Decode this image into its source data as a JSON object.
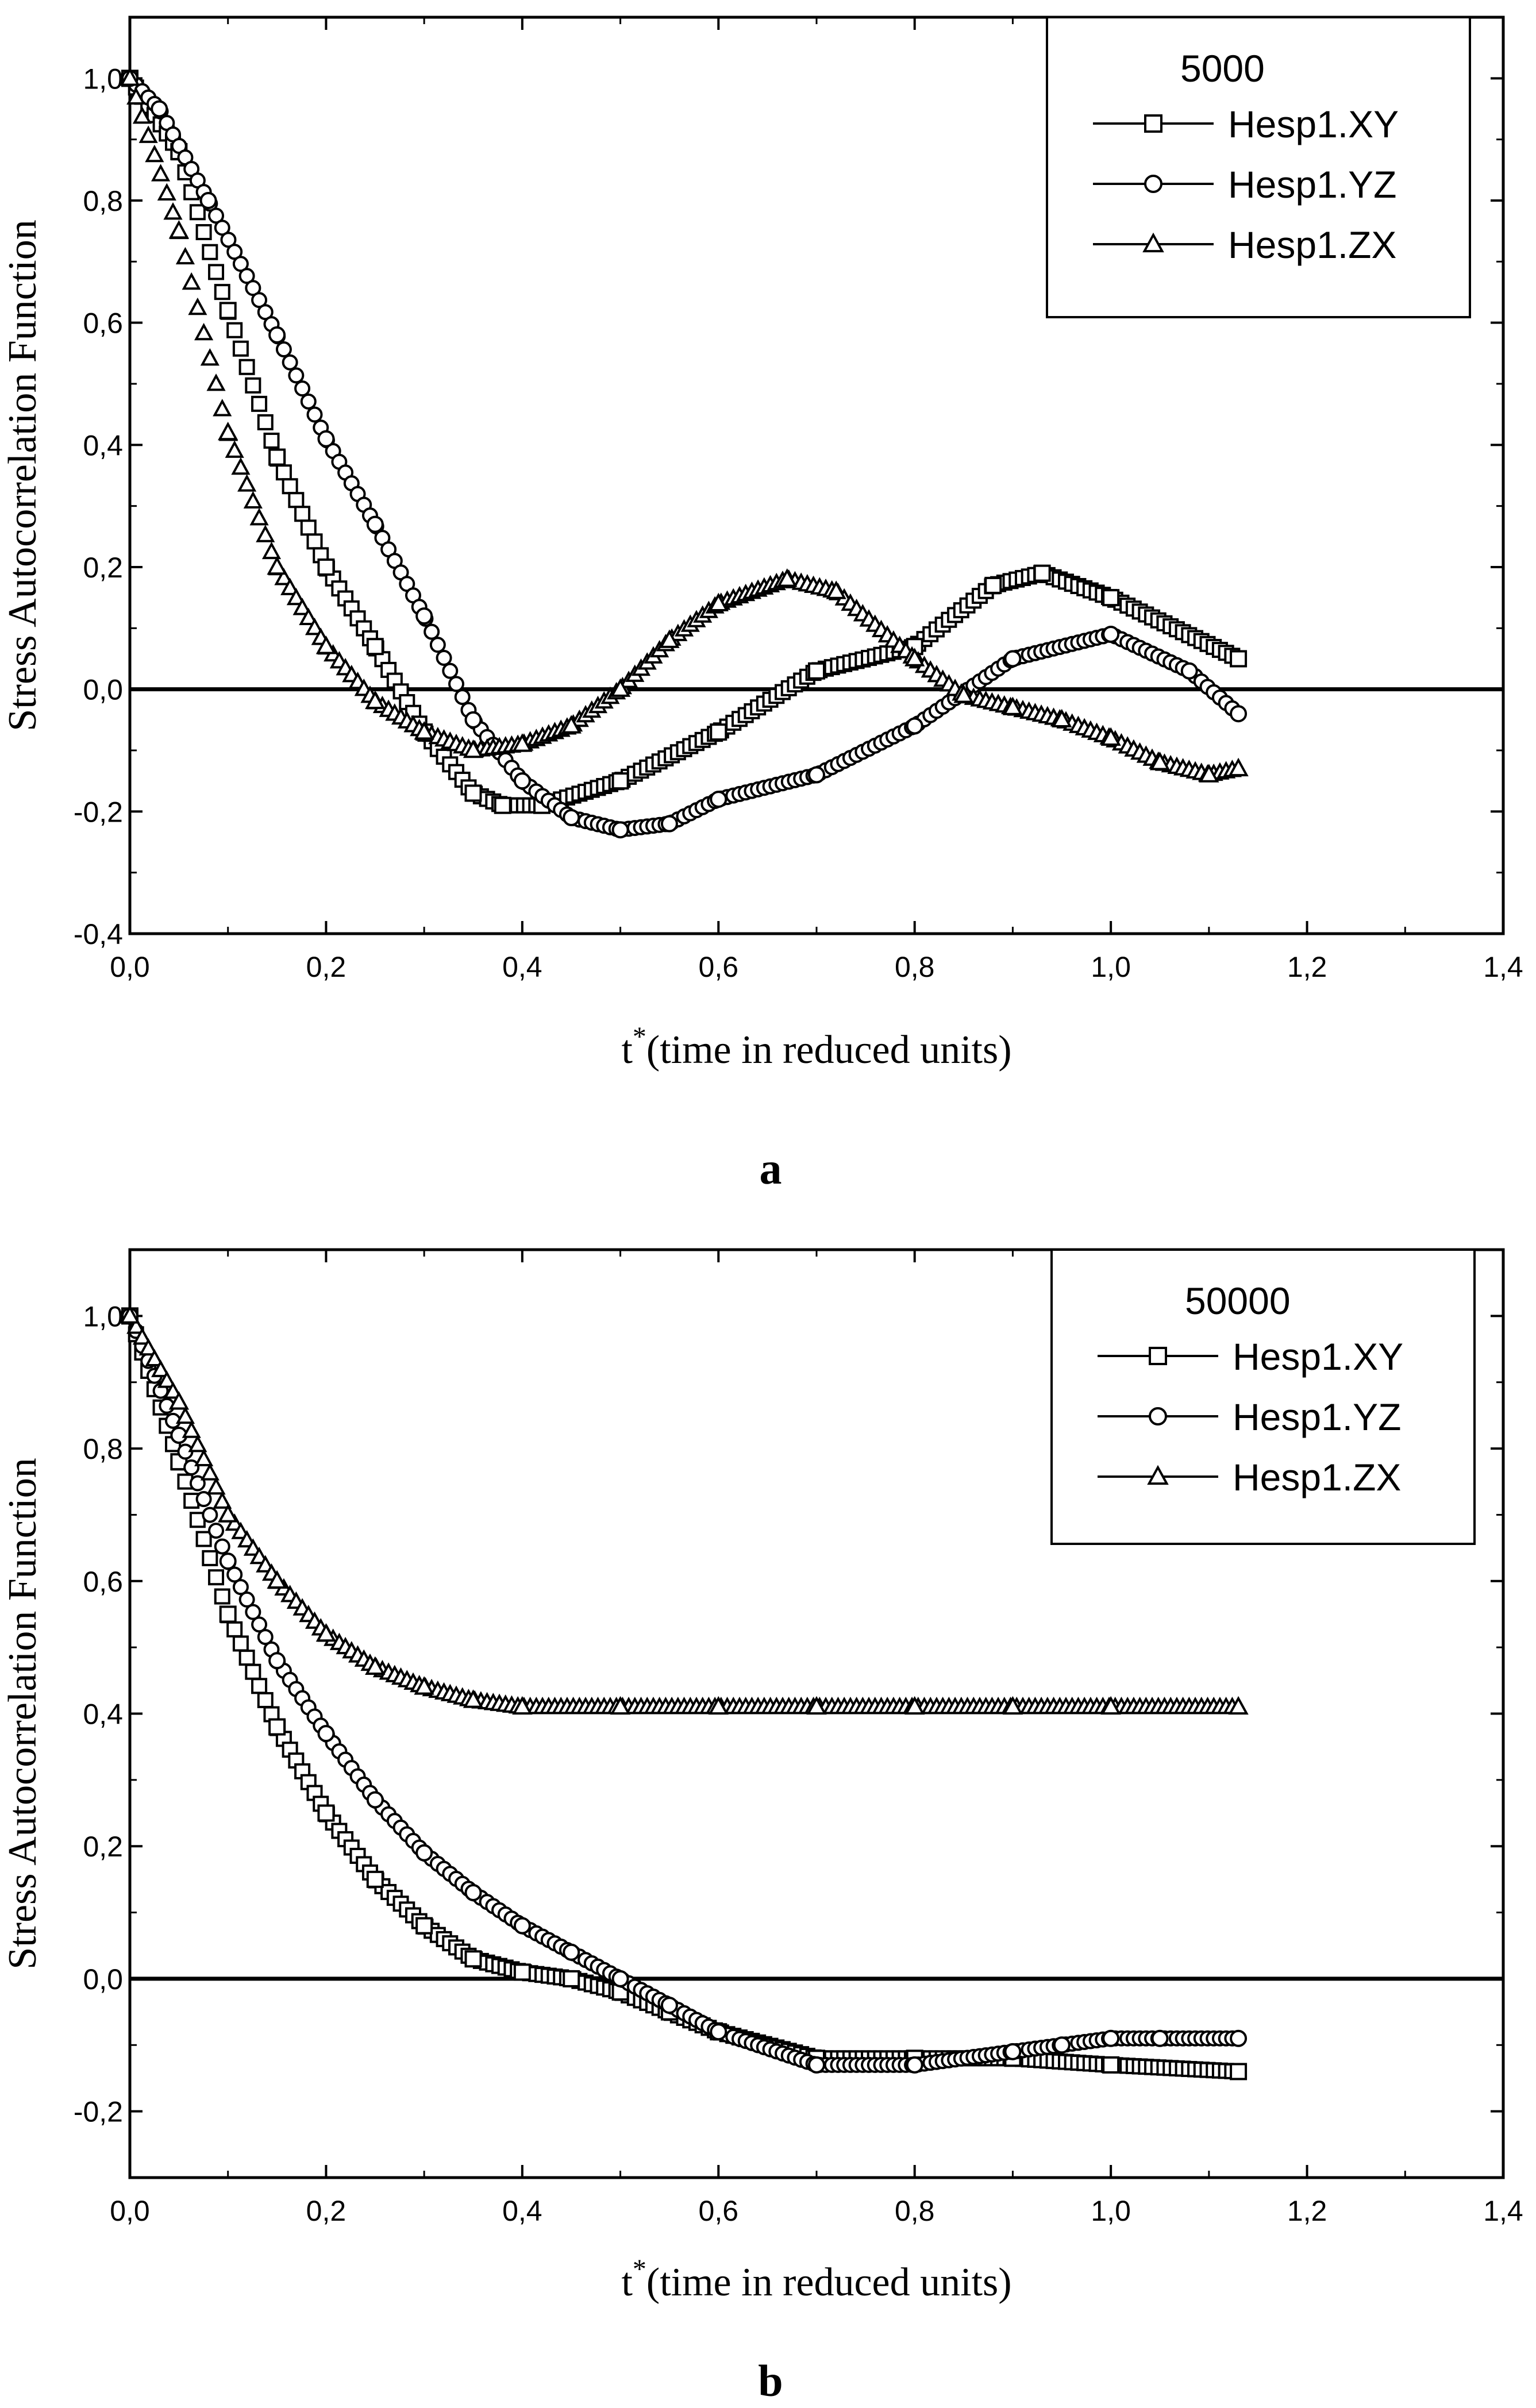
{
  "chart_data": [
    {
      "type": "scatter",
      "panel_label": "a",
      "title": "",
      "legend_title": "5000",
      "xlabel_main": "t",
      "xlabel_sup": "*",
      "xlabel_rest": "(time in reduced units)",
      "ylabel": "Stress Autocorrelation Function",
      "xlim": [
        0,
        1.4
      ],
      "ylim": [
        -0.4,
        1.1
      ],
      "xticks": [
        0,
        0.2,
        0.4,
        0.6,
        0.8,
        1.0,
        1.2,
        1.4
      ],
      "xtick_labels": [
        "0,0",
        "0,2",
        "0,4",
        "0,6",
        "0,8",
        "1,0",
        "1,2",
        "1,4"
      ],
      "yticks": [
        -0.4,
        -0.2,
        0.0,
        0.2,
        0.4,
        0.6,
        0.8,
        1.0
      ],
      "ytick_labels": [
        "-0,4",
        "-0,2",
        "0,0",
        "0,2",
        "0,4",
        "0,6",
        "0,8",
        "1,0"
      ],
      "zero_line": true,
      "legend_position": "top-right",
      "series": [
        {
          "name": "Hesp1.XY",
          "marker": "square",
          "x": [
            0,
            0.05,
            0.1,
            0.15,
            0.2,
            0.25,
            0.3,
            0.35,
            0.38,
            0.42,
            0.5,
            0.6,
            0.7,
            0.8,
            0.88,
            0.93,
            1.0,
            1.13
          ],
          "y": [
            1.0,
            0.88,
            0.62,
            0.38,
            0.2,
            0.07,
            -0.07,
            -0.17,
            -0.19,
            -0.19,
            -0.15,
            -0.07,
            0.03,
            0.07,
            0.17,
            0.19,
            0.15,
            0.05
          ]
        },
        {
          "name": "Hesp1.YZ",
          "marker": "circle",
          "x": [
            0,
            0.03,
            0.08,
            0.15,
            0.2,
            0.25,
            0.3,
            0.35,
            0.4,
            0.45,
            0.5,
            0.55,
            0.6,
            0.7,
            0.8,
            0.9,
            1.0,
            1.08,
            1.13
          ],
          "y": [
            1.0,
            0.95,
            0.8,
            0.58,
            0.41,
            0.27,
            0.12,
            -0.05,
            -0.15,
            -0.21,
            -0.23,
            -0.22,
            -0.18,
            -0.14,
            -0.06,
            0.05,
            0.09,
            0.03,
            -0.04
          ]
        },
        {
          "name": "Hesp1.ZX",
          "marker": "triangle",
          "x": [
            0,
            0.05,
            0.1,
            0.15,
            0.2,
            0.25,
            0.3,
            0.35,
            0.4,
            0.45,
            0.5,
            0.55,
            0.6,
            0.67,
            0.72,
            0.8,
            0.85,
            0.9,
            0.95,
            1.0,
            1.05,
            1.1,
            1.13
          ],
          "y": [
            1.0,
            0.75,
            0.42,
            0.2,
            0.07,
            -0.02,
            -0.07,
            -0.1,
            -0.09,
            -0.06,
            0.0,
            0.08,
            0.14,
            0.18,
            0.16,
            0.05,
            -0.01,
            -0.03,
            -0.05,
            -0.08,
            -0.12,
            -0.14,
            -0.13
          ]
        }
      ]
    },
    {
      "type": "scatter",
      "panel_label": "b",
      "title": "",
      "legend_title": "50000",
      "xlabel_main": "t",
      "xlabel_sup": "*",
      "xlabel_rest": "(time in reduced units)",
      "ylabel": "Stress Autocorrelation Function",
      "xlim": [
        0,
        1.4
      ],
      "ylim": [
        -0.3,
        1.1
      ],
      "xticks": [
        0,
        0.2,
        0.4,
        0.6,
        0.8,
        1.0,
        1.2,
        1.4
      ],
      "xtick_labels": [
        "0,0",
        "0,2",
        "0,4",
        "0,6",
        "0,8",
        "1,0",
        "1,2",
        "1,4"
      ],
      "yticks": [
        -0.2,
        0.0,
        0.2,
        0.4,
        0.6,
        0.8,
        1.0
      ],
      "ytick_labels": [
        "-0,2",
        "0,0",
        "0,2",
        "0,4",
        "0,6",
        "0,8",
        "1,0"
      ],
      "zero_line": true,
      "legend_position": "top-right",
      "series": [
        {
          "name": "Hesp1.XY",
          "marker": "square",
          "x": [
            0,
            0.05,
            0.1,
            0.15,
            0.2,
            0.25,
            0.3,
            0.35,
            0.4,
            0.45,
            0.5,
            0.55,
            0.6,
            0.7,
            0.8,
            0.9,
            1.0,
            1.13
          ],
          "y": [
            1.0,
            0.78,
            0.55,
            0.38,
            0.25,
            0.15,
            0.08,
            0.03,
            0.01,
            0.0,
            -0.02,
            -0.05,
            -0.08,
            -0.12,
            -0.12,
            -0.12,
            -0.13,
            -0.14
          ]
        },
        {
          "name": "Hesp1.YZ",
          "marker": "circle",
          "x": [
            0,
            0.05,
            0.1,
            0.15,
            0.2,
            0.25,
            0.3,
            0.35,
            0.4,
            0.45,
            0.5,
            0.55,
            0.6,
            0.7,
            0.8,
            0.9,
            0.95,
            1.0,
            1.05,
            1.13
          ],
          "y": [
            1.0,
            0.82,
            0.63,
            0.48,
            0.37,
            0.27,
            0.19,
            0.13,
            0.08,
            0.04,
            0.0,
            -0.04,
            -0.08,
            -0.13,
            -0.13,
            -0.11,
            -0.1,
            -0.09,
            -0.09,
            -0.09
          ]
        },
        {
          "name": "Hesp1.ZX",
          "marker": "triangle",
          "x": [
            0,
            0.05,
            0.1,
            0.15,
            0.2,
            0.25,
            0.3,
            0.35,
            0.4,
            0.5,
            0.6,
            0.7,
            0.8,
            0.9,
            1.0,
            1.13
          ],
          "y": [
            1.0,
            0.87,
            0.7,
            0.6,
            0.52,
            0.47,
            0.44,
            0.42,
            0.41,
            0.41,
            0.41,
            0.41,
            0.41,
            0.41,
            0.41,
            0.41
          ]
        }
      ]
    }
  ]
}
